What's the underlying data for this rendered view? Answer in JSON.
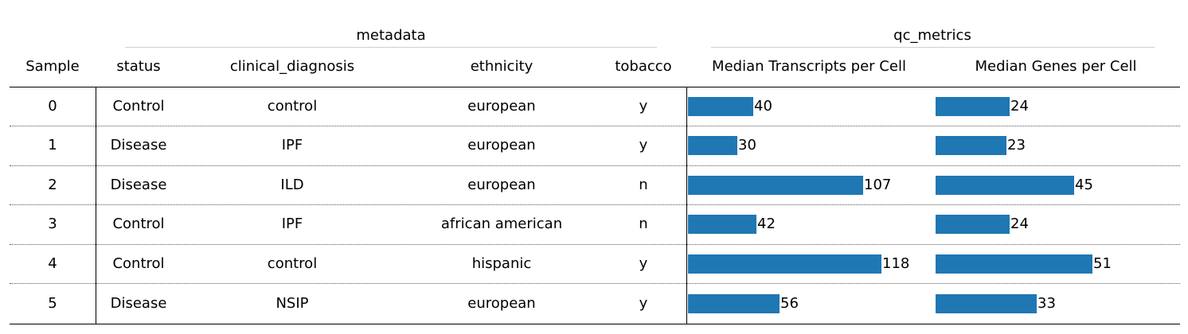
{
  "group_headers": [
    {
      "label": "metadata"
    },
    {
      "label": "qc_metrics"
    }
  ],
  "columns": [
    "Sample",
    "status",
    "clinical_diagnosis",
    "ethnicity",
    "tobacco",
    "Median Transcripts per Cell",
    "Median Genes per Cell"
  ],
  "rows": [
    {
      "sample": "0",
      "status": "Control",
      "clinical_diagnosis": "control",
      "ethnicity": "european",
      "tobacco": "y",
      "median_transcripts": 40,
      "median_genes": 24
    },
    {
      "sample": "1",
      "status": "Disease",
      "clinical_diagnosis": "IPF",
      "ethnicity": "european",
      "tobacco": "y",
      "median_transcripts": 30,
      "median_genes": 23
    },
    {
      "sample": "2",
      "status": "Disease",
      "clinical_diagnosis": "ILD",
      "ethnicity": "european",
      "tobacco": "n",
      "median_transcripts": 107,
      "median_genes": 45
    },
    {
      "sample": "3",
      "status": "Control",
      "clinical_diagnosis": "IPF",
      "ethnicity": "african american",
      "tobacco": "n",
      "median_transcripts": 42,
      "median_genes": 24
    },
    {
      "sample": "4",
      "status": "Control",
      "clinical_diagnosis": "control",
      "ethnicity": "hispanic",
      "tobacco": "y",
      "median_transcripts": 118,
      "median_genes": 51
    },
    {
      "sample": "5",
      "status": "Disease",
      "clinical_diagnosis": "NSIP",
      "ethnicity": "european",
      "tobacco": "y",
      "median_transcripts": 56,
      "median_genes": 33
    }
  ],
  "chart_data": {
    "type": "table",
    "title": "",
    "columns": [
      "Sample",
      "status",
      "clinical_diagnosis",
      "ethnicity",
      "tobacco",
      "Median Transcripts per Cell",
      "Median Genes per Cell"
    ],
    "column_groups": [
      {
        "name": "metadata",
        "columns": [
          "status",
          "clinical_diagnosis",
          "ethnicity",
          "tobacco"
        ]
      },
      {
        "name": "qc_metrics",
        "columns": [
          "Median Transcripts per Cell",
          "Median Genes per Cell"
        ]
      }
    ],
    "bar_columns": [
      "Median Transcripts per Cell",
      "Median Genes per Cell"
    ],
    "bar_color": "#1f77b4",
    "series": [
      {
        "name": "Median Transcripts per Cell",
        "values": [
          40,
          30,
          107,
          42,
          118,
          56
        ]
      },
      {
        "name": "Median Genes per Cell",
        "values": [
          24,
          23,
          45,
          24,
          51,
          33
        ]
      }
    ]
  }
}
